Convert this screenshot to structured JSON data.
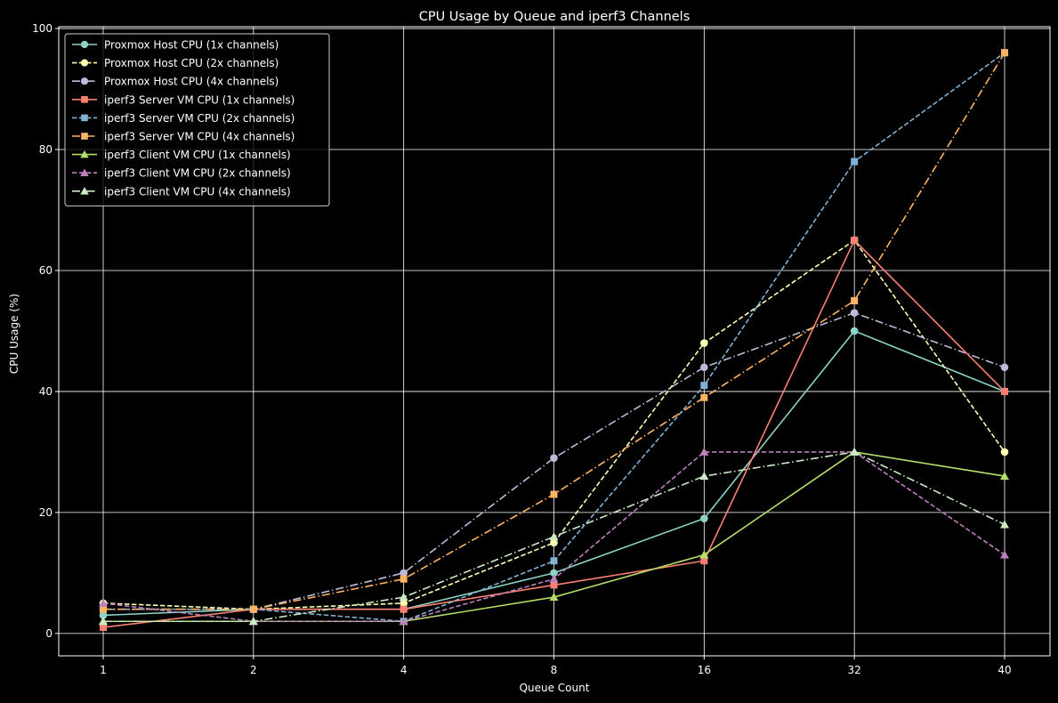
{
  "chart_data": {
    "type": "line",
    "title": "CPU Usage by Queue and iperf3 Channels",
    "xlabel": "Queue Count",
    "ylabel": "CPU Usage (%)",
    "categories": [
      "1",
      "2",
      "4",
      "8",
      "16",
      "32",
      "40"
    ],
    "ylim": [
      -3.7,
      100.3
    ],
    "yticks": [
      0,
      20,
      40,
      60,
      80,
      100
    ],
    "grid": true,
    "legend_position": "upper-left",
    "background": "#000000",
    "series": [
      {
        "name": "Proxmox Host CPU (1x channels)",
        "color": "#8dd3c7",
        "marker": "circle",
        "linestyle": "solid",
        "values": [
          3,
          4,
          4,
          10,
          19,
          50,
          40
        ]
      },
      {
        "name": "Proxmox Host CPU (2x channels)",
        "color": "#ffffb3",
        "marker": "circle",
        "linestyle": "dashed",
        "values": [
          5,
          4,
          5,
          15,
          48,
          65,
          30
        ]
      },
      {
        "name": "Proxmox Host CPU (4x channels)",
        "color": "#bebada",
        "marker": "circle",
        "linestyle": "dashdot",
        "values": [
          4,
          4,
          10,
          29,
          44,
          53,
          44
        ]
      },
      {
        "name": "iperf3 Server VM CPU (1x channels)",
        "color": "#fb8072",
        "marker": "square",
        "linestyle": "solid",
        "values": [
          1,
          4,
          4,
          8,
          12,
          65,
          40
        ]
      },
      {
        "name": "iperf3 Server VM CPU (2x channels)",
        "color": "#80b1d3",
        "marker": "square",
        "linestyle": "dashed",
        "values": [
          4,
          4,
          2,
          12,
          41,
          78,
          96
        ]
      },
      {
        "name": "iperf3 Server VM CPU (4x channels)",
        "color": "#fdb462",
        "marker": "square",
        "linestyle": "dashdot",
        "values": [
          4,
          4,
          9,
          23,
          39,
          55,
          96
        ]
      },
      {
        "name": "iperf3 Client VM CPU (1x channels)",
        "color": "#b3de69",
        "marker": "triangle",
        "linestyle": "solid",
        "values": [
          2,
          2,
          2,
          6,
          13,
          30,
          26
        ]
      },
      {
        "name": "iperf3 Client VM CPU (2x channels)",
        "color": "#bc80bd",
        "marker": "triangle",
        "linestyle": "dashed",
        "values": [
          5,
          2,
          2,
          9,
          30,
          30,
          13
        ]
      },
      {
        "name": "iperf3 Client VM CPU (4x channels)",
        "color": "#ccebc5",
        "marker": "triangle",
        "linestyle": "dashdot",
        "values": [
          2,
          2,
          6,
          16,
          26,
          30,
          18
        ]
      }
    ]
  }
}
